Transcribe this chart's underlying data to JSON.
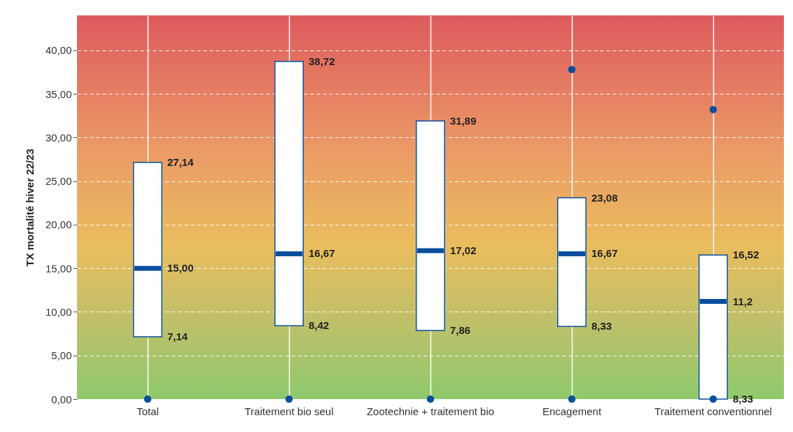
{
  "chart_data": {
    "type": "box",
    "ylabel": "TX mortalité hiver 22/23",
    "categories": [
      "Total",
      "Traitement bio seul",
      "Zootechnie + traitement bio",
      "Encagement",
      "Traitement conventionnel"
    ],
    "series": [
      {
        "color": "#0a4f9e",
        "boxes": [
          {
            "low": 7.14,
            "q1": 7.14,
            "median": 15,
            "q3": 27.14,
            "high": 27.14,
            "outliers": [
              0
            ]
          },
          {
            "low": 8.42,
            "q1": 8.42,
            "median": 16.67,
            "q3": 38.72,
            "high": 38.72,
            "outliers": [
              0
            ]
          },
          {
            "low": 7.86,
            "q1": 7.86,
            "median": 17.02,
            "q3": 31.89,
            "high": 31.89,
            "outliers": [
              0
            ]
          },
          {
            "low": 8.33,
            "q1": 8.33,
            "median": 16.67,
            "q3": 23.08,
            "high": 23.08,
            "outliers": [
              0,
              37.8
            ]
          },
          {
            "low": 0,
            "q1": 0,
            "median": 11.2,
            "q3": 16.52,
            "high": 16.52,
            "outliers": [
              0,
              33.2
            ]
          }
        ]
      }
    ],
    "ylim": [
      0,
      44
    ],
    "yticks": [
      {
        "value": 0,
        "label": "0,00"
      },
      {
        "value": 5,
        "label": "5,00"
      },
      {
        "value": 10,
        "label": "10,00"
      },
      {
        "value": 15,
        "label": "15,00"
      },
      {
        "value": 20,
        "label": "20,00"
      },
      {
        "value": 25,
        "label": "25,00"
      },
      {
        "value": 30,
        "label": "30,00"
      },
      {
        "value": 35,
        "label": "35,00"
      },
      {
        "value": 40,
        "label": "40,00"
      }
    ],
    "grid": true,
    "annotations": [
      {
        "text": "27,14",
        "x": "Total",
        "y": 27.14
      },
      {
        "text": "15,00",
        "x": "Total",
        "y": 15
      },
      {
        "text": "7,14",
        "x": "Total",
        "y": 7.14
      },
      {
        "text": "38,72",
        "x": "Traitement bio seul",
        "y": 38.72
      },
      {
        "text": "16,67",
        "x": "Traitement bio seul",
        "y": 16.67
      },
      {
        "text": "8,42",
        "x": "Traitement bio seul",
        "y": 8.42
      },
      {
        "text": "31,89",
        "x": "Zootechnie + traitement bio",
        "y": 31.89
      },
      {
        "text": "17,02",
        "x": "Zootechnie + traitement bio",
        "y": 17.02
      },
      {
        "text": "7,86",
        "x": "Zootechnie + traitement bio",
        "y": 7.86
      },
      {
        "text": "23,08",
        "x": "Encagement",
        "y": 23.08
      },
      {
        "text": "16,67",
        "x": "Encagement",
        "y": 16.67
      },
      {
        "text": "8,33",
        "x": "Encagement",
        "y": 8.33
      },
      {
        "text": "16,52",
        "x": "Traitement conventionnel",
        "y": 16.52
      },
      {
        "text": "11,2",
        "x": "Traitement conventionnel",
        "y": 11.2
      },
      {
        "text": "8,33",
        "x": "Traitement conventionnel",
        "y": 0
      }
    ]
  }
}
